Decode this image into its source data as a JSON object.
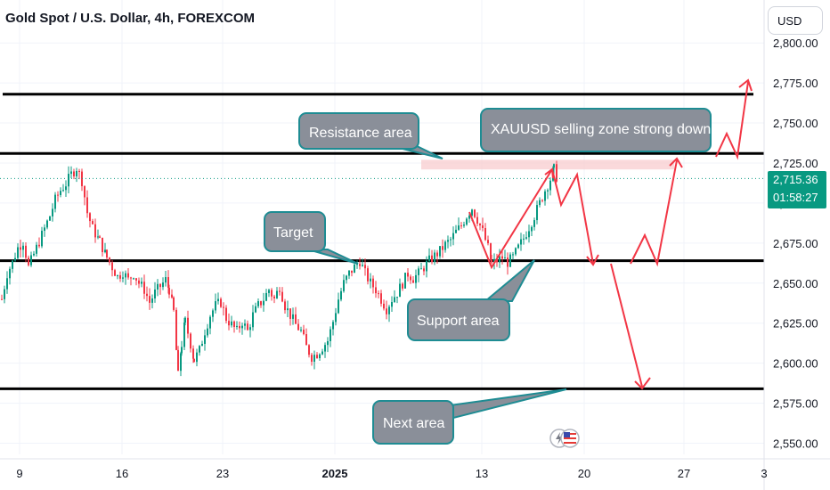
{
  "header": {
    "title": "Gold Spot / U.S. Dollar, 4h, FOREXCOM",
    "currency_button": "USD"
  },
  "price_tag": {
    "price": "2,715.36",
    "countdown": "01:58:27"
  },
  "colors": {
    "up": "#089981",
    "down": "#f23645",
    "callout_fill": "#8a8f99",
    "callout_border": "#1e8c93",
    "arrow": "#f23645",
    "resistance_band": "#f8c9cc"
  },
  "chart_data": {
    "type": "candlestick",
    "title": "Gold Spot / U.S. Dollar, 4h, FOREXCOM",
    "ylim": [
      2545,
      2820
    ],
    "y_ticks": [
      "2,550.00",
      "2,575.00",
      "2,600.00",
      "2,625.00",
      "2,650.00",
      "2,675.00",
      "2,700.00",
      "2,725.00",
      "2,750.00",
      "2,775.00",
      "2,800.00"
    ],
    "y_tick_values": [
      2550,
      2575,
      2600,
      2625,
      2650,
      2675,
      2700,
      2725,
      2750,
      2775,
      2800
    ],
    "x_ticks": [
      "9",
      "16",
      "23",
      "2025",
      "13",
      "20",
      "27",
      "3"
    ],
    "current_price": 2715.36,
    "horizontal_levels": [
      2768,
      2731,
      2664,
      2584
    ],
    "resistance_band": [
      2721,
      2727
    ],
    "candle_anchors": [
      [
        0,
        2640
      ],
      [
        6,
        2656
      ],
      [
        12,
        2663
      ],
      [
        18,
        2672
      ],
      [
        24,
        2676
      ],
      [
        30,
        2660
      ],
      [
        36,
        2668
      ],
      [
        42,
        2676
      ],
      [
        48,
        2684
      ],
      [
        54,
        2692
      ],
      [
        60,
        2702
      ],
      [
        66,
        2708
      ],
      [
        72,
        2712
      ],
      [
        78,
        2718
      ],
      [
        84,
        2722
      ],
      [
        90,
        2714
      ],
      [
        96,
        2694
      ],
      [
        102,
        2684
      ],
      [
        110,
        2676
      ],
      [
        118,
        2666
      ],
      [
        124,
        2660
      ],
      [
        130,
        2654
      ],
      [
        136,
        2657
      ],
      [
        142,
        2652
      ],
      [
        148,
        2656
      ],
      [
        154,
        2650
      ],
      [
        160,
        2646
      ],
      [
        166,
        2638
      ],
      [
        172,
        2644
      ],
      [
        178,
        2648
      ],
      [
        184,
        2652
      ],
      [
        188,
        2646
      ],
      [
        193,
        2632
      ],
      [
        198,
        2592
      ],
      [
        202,
        2612
      ],
      [
        206,
        2626
      ],
      [
        212,
        2612
      ],
      [
        216,
        2602
      ],
      [
        222,
        2608
      ],
      [
        228,
        2620
      ],
      [
        234,
        2630
      ],
      [
        240,
        2636
      ],
      [
        246,
        2638
      ],
      [
        252,
        2628
      ],
      [
        258,
        2624
      ],
      [
        264,
        2620
      ],
      [
        270,
        2626
      ],
      [
        276,
        2620
      ],
      [
        282,
        2630
      ],
      [
        288,
        2636
      ],
      [
        294,
        2640
      ],
      [
        300,
        2646
      ],
      [
        306,
        2640
      ],
      [
        312,
        2648
      ],
      [
        318,
        2636
      ],
      [
        324,
        2630
      ],
      [
        330,
        2624
      ],
      [
        336,
        2620
      ],
      [
        342,
        2610
      ],
      [
        348,
        2604
      ],
      [
        354,
        2606
      ],
      [
        360,
        2610
      ],
      [
        366,
        2614
      ],
      [
        372,
        2626
      ],
      [
        378,
        2640
      ],
      [
        384,
        2650
      ],
      [
        390,
        2656
      ],
      [
        396,
        2660
      ],
      [
        402,
        2664
      ],
      [
        408,
        2656
      ],
      [
        414,
        2650
      ],
      [
        420,
        2646
      ],
      [
        426,
        2640
      ],
      [
        432,
        2634
      ],
      [
        438,
        2640
      ],
      [
        444,
        2644
      ],
      [
        450,
        2650
      ],
      [
        456,
        2656
      ],
      [
        462,
        2653
      ],
      [
        468,
        2656
      ],
      [
        474,
        2660
      ],
      [
        480,
        2664
      ],
      [
        486,
        2667
      ],
      [
        492,
        2670
      ],
      [
        498,
        2674
      ],
      [
        504,
        2677
      ],
      [
        510,
        2682
      ],
      [
        516,
        2686
      ],
      [
        522,
        2692
      ],
      [
        528,
        2697
      ],
      [
        534,
        2690
      ],
      [
        540,
        2682
      ],
      [
        546,
        2672
      ],
      [
        550,
        2662
      ],
      [
        556,
        2664
      ],
      [
        562,
        2666
      ],
      [
        568,
        2663
      ],
      [
        574,
        2666
      ],
      [
        580,
        2672
      ],
      [
        586,
        2678
      ],
      [
        592,
        2685
      ],
      [
        598,
        2692
      ],
      [
        604,
        2700
      ],
      [
        610,
        2708
      ],
      [
        616,
        2715
      ],
      [
        620,
        2721
      ],
      [
        624,
        2715
      ]
    ]
  },
  "callouts": {
    "resistance": "Resistance area",
    "selling_zone": "XAUUSD selling zone strong down",
    "target": "Target",
    "support": "Support area",
    "next": "Next area"
  }
}
